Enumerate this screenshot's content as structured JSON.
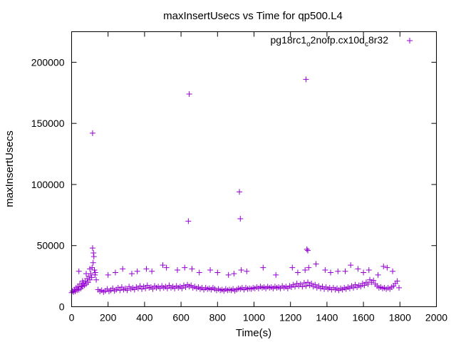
{
  "chart_data": {
    "type": "scatter",
    "title": "maxInsertUsecs vs Time for qp500.L4",
    "xlabel": "Time(s)",
    "ylabel": "maxInsertUsecs",
    "xlim": [
      0,
      2000
    ],
    "ylim": [
      0,
      225000
    ],
    "x_ticks": [
      0,
      200,
      400,
      600,
      800,
      1000,
      1200,
      1400,
      1600,
      1800,
      2000
    ],
    "x_tick_labels": [
      "0",
      "200",
      "400",
      "600",
      "800",
      "1000",
      "1200",
      "1400",
      "1600",
      "1800",
      "2000"
    ],
    "y_ticks": [
      0,
      50000,
      100000,
      150000,
      200000
    ],
    "y_tick_labels": [
      "0",
      "50000",
      "100000",
      "150000",
      "200000"
    ],
    "grid": false,
    "legend_position": "top-right",
    "marker": "plus",
    "series": [
      {
        "name": "pg18rc1_o2nofp.cx10d_c8r32",
        "legend": {
          "base1": "pg18rc1",
          "sub1": "o",
          "base2": "2nofp.cx10d",
          "sub2": "c",
          "base3": "8r32"
        },
        "color": "#9400d3",
        "points": [
          [
            0,
            11500
          ],
          [
            5,
            13000
          ],
          [
            10,
            12000
          ],
          [
            15,
            14000
          ],
          [
            20,
            12500
          ],
          [
            25,
            15500
          ],
          [
            30,
            13500
          ],
          [
            35,
            16500
          ],
          [
            40,
            14000
          ],
          [
            45,
            18500
          ],
          [
            50,
            15000
          ],
          [
            55,
            17000
          ],
          [
            60,
            16500
          ],
          [
            65,
            19500
          ],
          [
            70,
            17500
          ],
          [
            75,
            21000
          ],
          [
            80,
            18500
          ],
          [
            85,
            23000
          ],
          [
            90,
            20000
          ],
          [
            95,
            25000
          ],
          [
            100,
            22000
          ],
          [
            105,
            27000
          ],
          [
            110,
            24000
          ],
          [
            112,
            32000
          ],
          [
            115,
            48000
          ],
          [
            118,
            36000
          ],
          [
            120,
            44000
          ],
          [
            122,
            41000
          ],
          [
            125,
            30000
          ],
          [
            128,
            26000
          ],
          [
            130,
            28000
          ],
          [
            135,
            22000
          ],
          [
            40,
            29000
          ],
          [
            60,
            21000
          ],
          [
            80,
            27000
          ],
          [
            100,
            31000
          ],
          [
            115,
            142000
          ],
          [
            145,
            14000
          ],
          [
            155,
            12500
          ],
          [
            165,
            13500
          ],
          [
            175,
            12000
          ],
          [
            185,
            13000
          ],
          [
            195,
            14500
          ],
          [
            205,
            12500
          ],
          [
            215,
            13500
          ],
          [
            225,
            15000
          ],
          [
            235,
            13000
          ],
          [
            245,
            14000
          ],
          [
            255,
            15500
          ],
          [
            265,
            13500
          ],
          [
            275,
            16000
          ],
          [
            285,
            14000
          ],
          [
            295,
            15000
          ],
          [
            305,
            13500
          ],
          [
            315,
            16500
          ],
          [
            325,
            14500
          ],
          [
            335,
            15500
          ],
          [
            345,
            14000
          ],
          [
            355,
            16000
          ],
          [
            365,
            15000
          ],
          [
            375,
            17000
          ],
          [
            385,
            14500
          ],
          [
            395,
            16500
          ],
          [
            405,
            15000
          ],
          [
            415,
            17500
          ],
          [
            425,
            15500
          ],
          [
            435,
            16000
          ],
          [
            445,
            14500
          ],
          [
            455,
            17000
          ],
          [
            465,
            15500
          ],
          [
            475,
            16500
          ],
          [
            485,
            15000
          ],
          [
            495,
            17000
          ],
          [
            505,
            15500
          ],
          [
            515,
            16500
          ],
          [
            525,
            15000
          ],
          [
            535,
            17500
          ],
          [
            545,
            15500
          ],
          [
            555,
            16500
          ],
          [
            565,
            15000
          ],
          [
            575,
            17000
          ],
          [
            585,
            15500
          ],
          [
            595,
            16500
          ],
          [
            605,
            15000
          ],
          [
            615,
            17500
          ],
          [
            625,
            16000
          ],
          [
            635,
            18000
          ],
          [
            645,
            16500
          ],
          [
            655,
            17500
          ],
          [
            665,
            15500
          ],
          [
            675,
            16500
          ],
          [
            685,
            15000
          ],
          [
            695,
            16000
          ],
          [
            705,
            14500
          ],
          [
            715,
            15500
          ],
          [
            725,
            14000
          ],
          [
            735,
            15500
          ],
          [
            745,
            14500
          ],
          [
            755,
            15000
          ],
          [
            765,
            14000
          ],
          [
            775,
            15500
          ],
          [
            785,
            14500
          ],
          [
            795,
            13500
          ],
          [
            805,
            14500
          ],
          [
            815,
            13500
          ],
          [
            825,
            14000
          ],
          [
            835,
            13000
          ],
          [
            845,
            14500
          ],
          [
            855,
            13500
          ],
          [
            865,
            14000
          ],
          [
            875,
            13500
          ],
          [
            885,
            14500
          ],
          [
            895,
            13000
          ],
          [
            905,
            14000
          ],
          [
            915,
            15000
          ],
          [
            925,
            14500
          ],
          [
            935,
            15500
          ],
          [
            945,
            14000
          ],
          [
            955,
            15500
          ],
          [
            965,
            14500
          ],
          [
            975,
            15000
          ],
          [
            985,
            14500
          ],
          [
            995,
            15500
          ],
          [
            1005,
            15000
          ],
          [
            1015,
            16000
          ],
          [
            1025,
            15000
          ],
          [
            1035,
            16500
          ],
          [
            1045,
            15500
          ],
          [
            1055,
            16000
          ],
          [
            1065,
            15000
          ],
          [
            1075,
            16500
          ],
          [
            1085,
            15500
          ],
          [
            1095,
            16000
          ],
          [
            1105,
            15000
          ],
          [
            1115,
            16500
          ],
          [
            1125,
            15500
          ],
          [
            1135,
            16000
          ],
          [
            1145,
            15000
          ],
          [
            1155,
            17000
          ],
          [
            1165,
            15500
          ],
          [
            1175,
            16500
          ],
          [
            1185,
            15000
          ],
          [
            1195,
            17000
          ],
          [
            1205,
            16000
          ],
          [
            1215,
            18000
          ],
          [
            1225,
            16500
          ],
          [
            1235,
            19000
          ],
          [
            1245,
            17000
          ],
          [
            1255,
            18500
          ],
          [
            1265,
            16500
          ],
          [
            1275,
            19500
          ],
          [
            1285,
            17000
          ],
          [
            1295,
            20000
          ],
          [
            1305,
            17500
          ],
          [
            1315,
            19000
          ],
          [
            1325,
            16500
          ],
          [
            1335,
            18000
          ],
          [
            1345,
            15500
          ],
          [
            1355,
            17000
          ],
          [
            1365,
            15000
          ],
          [
            1375,
            16500
          ],
          [
            1385,
            14500
          ],
          [
            1395,
            16000
          ],
          [
            1405,
            14500
          ],
          [
            1415,
            15500
          ],
          [
            1425,
            14000
          ],
          [
            1435,
            15500
          ],
          [
            1445,
            14000
          ],
          [
            1455,
            15000
          ],
          [
            1465,
            13500
          ],
          [
            1475,
            15000
          ],
          [
            1485,
            14000
          ],
          [
            1495,
            15500
          ],
          [
            1505,
            14500
          ],
          [
            1515,
            16000
          ],
          [
            1525,
            15000
          ],
          [
            1535,
            17000
          ],
          [
            1545,
            15500
          ],
          [
            1555,
            18000
          ],
          [
            1565,
            16000
          ],
          [
            1575,
            17500
          ],
          [
            1585,
            16500
          ],
          [
            1595,
            19000
          ],
          [
            1605,
            17500
          ],
          [
            1615,
            20000
          ],
          [
            1625,
            18500
          ],
          [
            1635,
            22000
          ],
          [
            1645,
            20000
          ],
          [
            1655,
            21500
          ],
          [
            1665,
            18500
          ],
          [
            1675,
            17000
          ],
          [
            1685,
            15500
          ],
          [
            1695,
            16000
          ],
          [
            1705,
            15000
          ],
          [
            1715,
            15500
          ],
          [
            1725,
            14500
          ],
          [
            1735,
            15500
          ],
          [
            1745,
            14500
          ],
          [
            1755,
            16000
          ],
          [
            1765,
            17000
          ],
          [
            1775,
            19000
          ],
          [
            1785,
            21000
          ],
          [
            1795,
            15500
          ],
          [
            200,
            26000
          ],
          [
            240,
            28000
          ],
          [
            280,
            31000
          ],
          [
            330,
            27000
          ],
          [
            360,
            29000
          ],
          [
            410,
            31000
          ],
          [
            440,
            29000
          ],
          [
            500,
            34000
          ],
          [
            520,
            32000
          ],
          [
            580,
            30000
          ],
          [
            620,
            32000
          ],
          [
            660,
            31000
          ],
          [
            700,
            28000
          ],
          [
            760,
            30000
          ],
          [
            800,
            28000
          ],
          [
            860,
            26000
          ],
          [
            890,
            27000
          ],
          [
            930,
            30000
          ],
          [
            960,
            29000
          ],
          [
            1050,
            32000
          ],
          [
            1120,
            26000
          ],
          [
            1210,
            32000
          ],
          [
            1240,
            28000
          ],
          [
            1280,
            30000
          ],
          [
            1300,
            32000
          ],
          [
            1340,
            35000
          ],
          [
            1390,
            30000
          ],
          [
            1420,
            28000
          ],
          [
            1460,
            29000
          ],
          [
            1500,
            29000
          ],
          [
            1530,
            34000
          ],
          [
            1570,
            31000
          ],
          [
            1600,
            28000
          ],
          [
            1630,
            30000
          ],
          [
            1680,
            26000
          ],
          [
            1710,
            33000
          ],
          [
            1730,
            32000
          ],
          [
            1760,
            29000
          ],
          [
            640,
            70000
          ],
          [
            645,
            174000
          ],
          [
            920,
            94000
          ],
          [
            925,
            72000
          ],
          [
            1285,
            186000
          ],
          [
            1290,
            47000
          ],
          [
            1295,
            46000
          ]
        ]
      }
    ]
  }
}
